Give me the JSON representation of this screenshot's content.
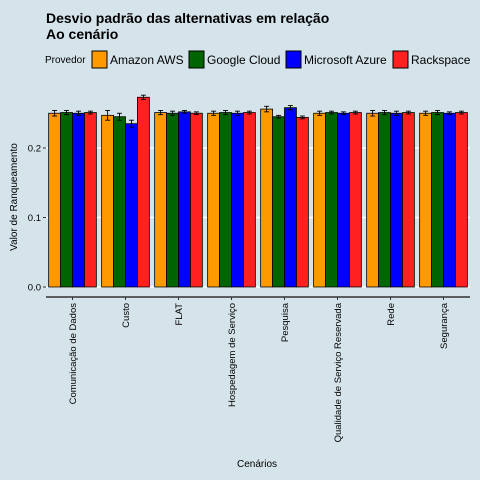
{
  "chart_data": {
    "type": "bar",
    "title": "Desvio padrão das alternativas em relação",
    "subtitle": "Ao cenário",
    "xlabel": "Cenários",
    "ylabel": "Valor de Ranqueamento",
    "ylim": [
      0,
      0.285
    ],
    "yticks": [
      0.0,
      0.1,
      0.2
    ],
    "ytick_labels": [
      "0.0",
      "0.1",
      "0.2"
    ],
    "grid": true,
    "legend_title": "Provedor",
    "legend_position": "top",
    "categories": [
      "Comunicação de Dados",
      "Custo",
      "FLAT",
      "Hospedagem de Serviço",
      "Pesquisa",
      "Qualidade de Serviço Reservada",
      "Rede",
      "Segurança"
    ],
    "series": [
      {
        "name": "Amazon AWS",
        "color": "#ff9900",
        "values": [
          0.25,
          0.247,
          0.251,
          0.25,
          0.256,
          0.25,
          0.25,
          0.25
        ],
        "errors": [
          0.004,
          0.007,
          0.003,
          0.003,
          0.004,
          0.003,
          0.004,
          0.003
        ]
      },
      {
        "name": "Google Cloud",
        "color": "#006400",
        "values": [
          0.251,
          0.245,
          0.25,
          0.251,
          0.245,
          0.251,
          0.251,
          0.251
        ],
        "errors": [
          0.003,
          0.005,
          0.003,
          0.003,
          0.002,
          0.002,
          0.003,
          0.003
        ]
      },
      {
        "name": "Microsoft Azure",
        "color": "#0000ff",
        "values": [
          0.25,
          0.235,
          0.252,
          0.25,
          0.258,
          0.25,
          0.25,
          0.25
        ],
        "errors": [
          0.003,
          0.005,
          0.002,
          0.003,
          0.003,
          0.002,
          0.003,
          0.002
        ]
      },
      {
        "name": "Rackspace",
        "color": "#ff2020",
        "values": [
          0.251,
          0.273,
          0.25,
          0.251,
          0.244,
          0.251,
          0.251,
          0.251
        ],
        "errors": [
          0.002,
          0.003,
          0.002,
          0.002,
          0.002,
          0.002,
          0.002,
          0.002
        ]
      }
    ]
  }
}
